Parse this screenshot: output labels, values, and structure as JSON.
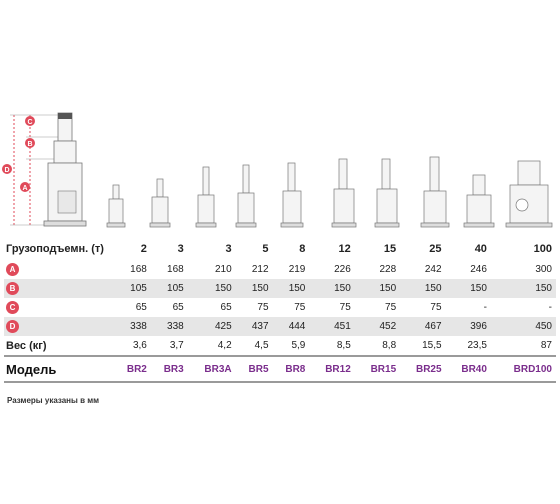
{
  "drawing": {
    "dimension_letters": [
      "C",
      "B",
      "D",
      "A"
    ],
    "main_jack_letter": "A"
  },
  "table": {
    "capacity_label": "Грузоподъемн. (т)",
    "capacities": [
      "2",
      "3",
      "3",
      "5",
      "8",
      "12",
      "15",
      "25",
      "40",
      "100"
    ],
    "rows": [
      {
        "letter": "A",
        "values": [
          "168",
          "168",
          "210",
          "212",
          "219",
          "226",
          "228",
          "242",
          "246",
          "300"
        ]
      },
      {
        "letter": "B",
        "values": [
          "105",
          "105",
          "150",
          "150",
          "150",
          "150",
          "150",
          "150",
          "150",
          "150"
        ]
      },
      {
        "letter": "C",
        "values": [
          "65",
          "65",
          "65",
          "75",
          "75",
          "75",
          "75",
          "75",
          "-",
          "-"
        ]
      },
      {
        "letter": "D",
        "values": [
          "338",
          "338",
          "425",
          "437",
          "444",
          "451",
          "452",
          "467",
          "396",
          "450"
        ]
      }
    ],
    "weight_label": "Вес (кг)",
    "weights": [
      "3,6",
      "3,7",
      "4,2",
      "4,5",
      "5,9",
      "8,5",
      "8,8",
      "15,5",
      "23,5",
      "87"
    ],
    "model_label": "Модель",
    "models": [
      "BR2",
      "BR3",
      "BR3A",
      "BR5",
      "BR8",
      "BR12",
      "BR15",
      "BR25",
      "BR40",
      "BRD100"
    ]
  },
  "note": "Размеры указаны в мм",
  "colors": {
    "badge": "#e04a5a",
    "model_text": "#7a2d8c",
    "stripe": "#e6e6e6"
  }
}
